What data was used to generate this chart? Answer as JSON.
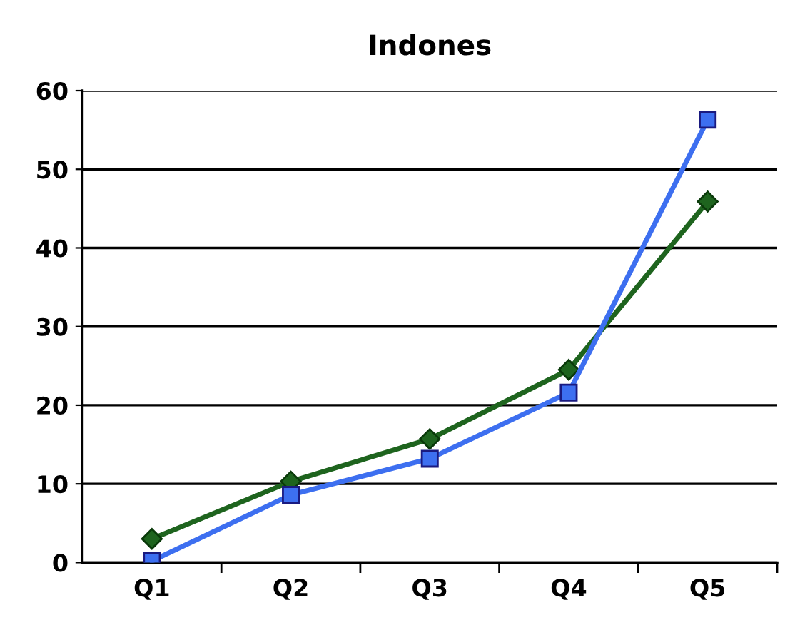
{
  "chart_data": {
    "type": "line",
    "title": "Indones",
    "categories": [
      "Q1",
      "Q2",
      "Q3",
      "Q4",
      "Q5"
    ],
    "series": [
      {
        "color": "#1e641e",
        "marker": "diamond",
        "values": [
          3.0,
          10.3,
          15.7,
          24.5,
          45.9
        ]
      },
      {
        "color": "#3d6ff0",
        "marker": "square",
        "values": [
          0.2,
          8.6,
          13.2,
          21.6,
          56.3
        ]
      }
    ],
    "ylim": [
      0,
      60
    ],
    "yticks": [
      0,
      10,
      20,
      30,
      40,
      50,
      60
    ],
    "grid": "y",
    "legend": false
  }
}
